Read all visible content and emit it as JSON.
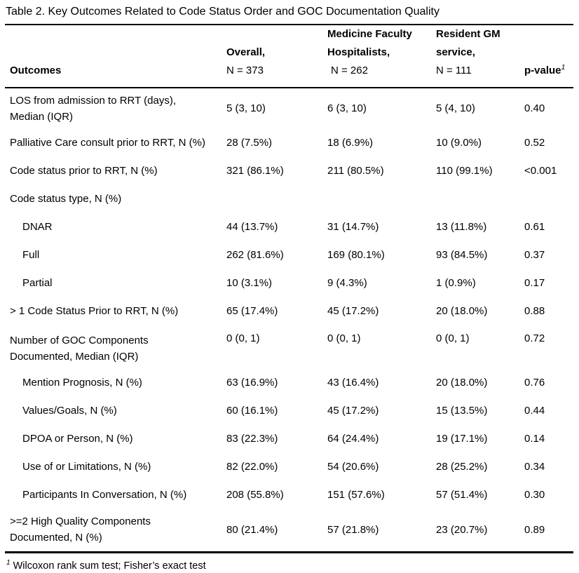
{
  "title": "Table 2. Key Outcomes Related to Code Status Order and GOC Documentation Quality",
  "header": {
    "outcomes": "Outcomes",
    "overall": {
      "line1": "Overall,",
      "line2": "",
      "n": "N = 373"
    },
    "faculty": {
      "line1": "Medicine Faculty",
      "line2": "Hospitalists,",
      "n": "N = 262"
    },
    "resident": {
      "line1": "Resident GM",
      "line2": "service,",
      "n": "N = 111"
    },
    "pvalue": {
      "label": "p-value",
      "sup": "1"
    }
  },
  "rows": [
    {
      "label": "LOS from admission to RRT (days),",
      "label2": "Median (IQR)",
      "overall": "5 (3, 10)",
      "faculty": "6 (3, 10)",
      "resident": "5 (4, 10)",
      "pvalue": "0.40"
    },
    {
      "label": "Palliative Care consult prior to RRT, N (%)",
      "label2": "",
      "overall": "28 (7.5%)",
      "faculty": "18 (6.9%)",
      "resident": "10 (9.0%)",
      "pvalue": "0.52"
    },
    {
      "label": "Code status prior to RRT, N (%)",
      "label2": "",
      "overall": "321 (86.1%)",
      "faculty": "211 (80.5%)",
      "resident": "110 (99.1%)",
      "pvalue": "<0.001"
    },
    {
      "label": "Code status type, N (%)",
      "label2": "",
      "overall": "",
      "faculty": "",
      "resident": "",
      "pvalue": ""
    },
    {
      "label": "DNAR",
      "label2": "",
      "overall": "44 (13.7%)",
      "faculty": "31 (14.7%)",
      "resident": "13 (11.8%)",
      "pvalue": "0.61"
    },
    {
      "label": "Full",
      "label2": "",
      "overall": "262 (81.6%)",
      "faculty": "169 (80.1%)",
      "resident": "93 (84.5%)",
      "pvalue": "0.37"
    },
    {
      "label": "Partial",
      "label2": "",
      "overall": "10 (3.1%)",
      "faculty": "9 (4.3%)",
      "resident": "1 (0.9%)",
      "pvalue": "0.17"
    },
    {
      "label": "> 1 Code Status Prior to RRT, N (%)",
      "label2": "",
      "overall": "65 (17.4%)",
      "faculty": "45 (17.2%)",
      "resident": "20 (18.0%)",
      "pvalue": "0.88"
    },
    {
      "label": "Number of GOC Components",
      "label2": "Documented, Median (IQR)",
      "overall": "0 (0, 1)",
      "faculty": "0 (0, 1)",
      "resident": "0 (0, 1)",
      "pvalue": "0.72"
    },
    {
      "label": "Mention Prognosis, N (%)",
      "label2": "",
      "overall": "63 (16.9%)",
      "faculty": "43 (16.4%)",
      "resident": "20 (18.0%)",
      "pvalue": "0.76"
    },
    {
      "label": "Values/Goals, N (%)",
      "label2": "",
      "overall": "60 (16.1%)",
      "faculty": "45 (17.2%)",
      "resident": "15 (13.5%)",
      "pvalue": "0.44"
    },
    {
      "label": "DPOA or Person, N (%)",
      "label2": "",
      "overall": "83 (22.3%)",
      "faculty": "64 (24.4%)",
      "resident": "19 (17.1%)",
      "pvalue": "0.14"
    },
    {
      "label": "Use of or Limitations, N (%)",
      "label2": "",
      "overall": "82 (22.0%)",
      "faculty": "54 (20.6%)",
      "resident": "28 (25.2%)",
      "pvalue": "0.34"
    },
    {
      "label": "Participants In Conversation, N (%)",
      "label2": "",
      "overall": "208 (55.8%)",
      "faculty": "151 (57.6%)",
      "resident": "57 (51.4%)",
      "pvalue": "0.30"
    },
    {
      "label": ">=2 High Quality Components",
      "label2": "Documented, N (%)",
      "overall": "80 (21.4%)",
      "faculty": "57 (21.8%)",
      "resident": "23 (20.7%)",
      "pvalue": "0.89"
    }
  ],
  "footnote": {
    "sup": "1",
    "text": "Wilcoxon rank sum test; Fisher’s exact test"
  },
  "colors": {
    "text": "#000000",
    "rule": "#000000",
    "background": "#ffffff"
  }
}
